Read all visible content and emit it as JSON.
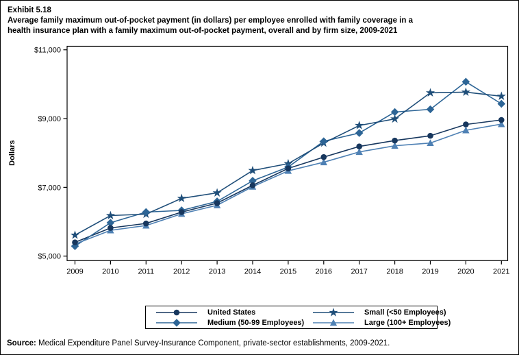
{
  "source": {
    "label": "Source:",
    "text": " Medical Expenditure Panel Survey-Insurance Component, private-sector establishments, 2009-2021."
  },
  "chart_data": {
    "type": "line",
    "exhibit": "Exhibit 5.18",
    "title": "Average family maximum out-of-pocket payment (in dollars) per employee enrolled with family coverage in a health insurance plan with a family maximum out-of-pocket payment, overall and by firm size, 2009-2021",
    "title_lines": [
      "Average family maximum out-of-pocket payment (in dollars) per employee enrolled with family coverage in a",
      "health insurance plan with a family maximum out-of-pocket payment, overall and by firm size, 2009-2021"
    ],
    "x": [
      2009,
      2010,
      2011,
      2012,
      2013,
      2014,
      2015,
      2016,
      2017,
      2018,
      2019,
      2020,
      2021
    ],
    "xlabel": "",
    "ylabel": "Dollars",
    "ylim": [
      5000,
      11000
    ],
    "yticks": [
      5000,
      7000,
      9000,
      11000
    ],
    "ytick_labels": [
      "$5,000",
      "$7,000",
      "$9,000",
      "$11,000"
    ],
    "grid": false,
    "legend_position": "bottom-box",
    "axis_color": "#000000",
    "series": [
      {
        "name": "United States",
        "marker": "circle",
        "color": "#17375e",
        "values": [
          5400,
          5820,
          5950,
          6280,
          6540,
          7060,
          7550,
          7880,
          8190,
          8360,
          8500,
          8830,
          8960
        ]
      },
      {
        "name": "Medium (50-99 Employees)",
        "marker": "diamond",
        "color": "#2d6596",
        "values": [
          5290,
          5970,
          6280,
          6330,
          6590,
          7190,
          7590,
          8340,
          8580,
          9190,
          9270,
          10070,
          9430
        ]
      },
      {
        "name": "Small (<50 Employees)",
        "marker": "star",
        "color": "#1f4e79",
        "values": [
          5610,
          6180,
          6220,
          6680,
          6840,
          7490,
          7690,
          8290,
          8800,
          8990,
          9750,
          9770,
          9650
        ]
      },
      {
        "name": "Large (100+ Employees)",
        "marker": "triangle",
        "color": "#4f81b4",
        "values": [
          5350,
          5750,
          5890,
          6230,
          6480,
          7020,
          7480,
          7730,
          8030,
          8210,
          8290,
          8660,
          8840
        ]
      }
    ],
    "legend_grid_order": [
      0,
      2,
      1,
      3
    ]
  }
}
